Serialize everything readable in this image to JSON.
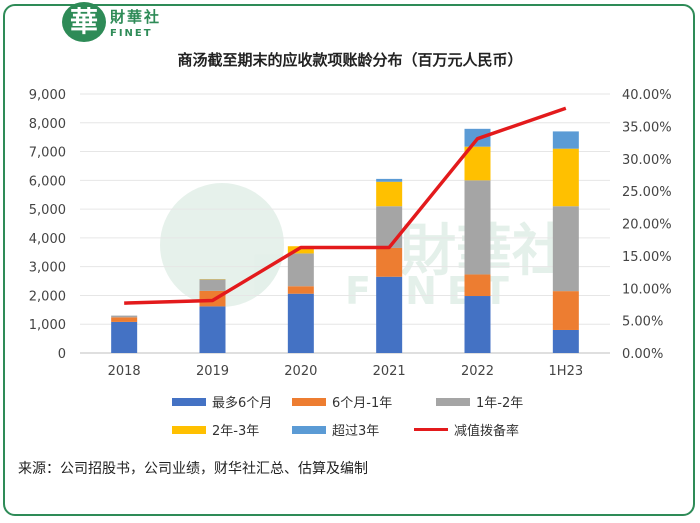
{
  "header": {
    "logo_char": "華",
    "brand_cn": "財華社",
    "brand_en": "FINET"
  },
  "watermark": {
    "cn": "財華社",
    "en": "FINET"
  },
  "source_text": "来源：公司招股书，公司业绩，财华社汇总、估算及编制",
  "colors": {
    "s1": "#4472c4",
    "s2": "#ed7d31",
    "s3": "#a5a5a5",
    "s4": "#ffc000",
    "s5": "#5b9bd5",
    "line": "#e31a1c",
    "frame": "#2e8b57"
  },
  "chart_data": {
    "type": "bar",
    "stacked": true,
    "title": "商汤截至期末的应收款项账龄分布（百万元人民币）",
    "categories": [
      "2018",
      "2019",
      "2020",
      "2021",
      "2022",
      "1H23"
    ],
    "y_ticks": [
      "0",
      "1,000",
      "2,000",
      "3,000",
      "4,000",
      "5,000",
      "6,000",
      "7,000",
      "8,000",
      "9,000"
    ],
    "y2_ticks": [
      "0.00%",
      "5.00%",
      "10.00%",
      "15.00%",
      "20.00%",
      "25.00%",
      "30.00%",
      "35.00%",
      "40.00%"
    ],
    "ylim": [
      0,
      9000
    ],
    "y2lim": [
      0,
      40
    ],
    "series": [
      {
        "name": "最多6个月",
        "values": [
          1080,
          1620,
          2060,
          2650,
          1980,
          800
        ]
      },
      {
        "name": "6个月-1年",
        "values": [
          160,
          540,
          260,
          1000,
          750,
          1350
        ]
      },
      {
        "name": "1年-2年",
        "values": [
          60,
          400,
          1140,
          1450,
          3270,
          2950
        ]
      },
      {
        "name": "2年-3年",
        "values": [
          0,
          10,
          250,
          850,
          1170,
          2000
        ]
      },
      {
        "name": "超过3年",
        "values": [
          0,
          0,
          0,
          100,
          620,
          600
        ]
      }
    ],
    "line_series": {
      "name": "减值拨备率",
      "values": [
        7.7,
        8.1,
        16.3,
        16.3,
        33.1,
        37.8
      ]
    }
  }
}
